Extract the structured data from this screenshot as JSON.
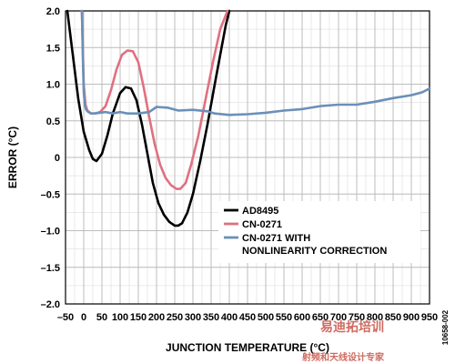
{
  "chart_data": {
    "type": "line",
    "xlabel": "JUNCTION TEMPERATURE (°C)",
    "ylabel": "ERROR (°C)",
    "xlim": [
      -50,
      950
    ],
    "ylim": [
      -2.0,
      2.0
    ],
    "x_ticks": [
      -50,
      0,
      50,
      100,
      150,
      200,
      250,
      300,
      350,
      400,
      450,
      500,
      550,
      600,
      650,
      700,
      750,
      800,
      850,
      900,
      950
    ],
    "x_tick_labels": [
      "–50",
      "0",
      "50",
      "100",
      "150",
      "200",
      "250",
      "300",
      "350",
      "400",
      "450",
      "500",
      "550",
      "600",
      "650",
      "700",
      "750",
      "800",
      "850",
      "900",
      "950"
    ],
    "y_ticks": [
      -2.0,
      -1.5,
      -1.0,
      -0.5,
      0,
      0.5,
      1.0,
      1.5,
      2.0
    ],
    "y_tick_labels": [
      "–2.0",
      "–1.5",
      "–1.0",
      "–0.5",
      "0",
      "0.5",
      "1.0",
      "1.5",
      "2.0"
    ],
    "x_minor_step": 25,
    "y_minor_step": 0.25,
    "grid": true,
    "legend_position": "lower-right",
    "series": [
      {
        "name": "AD8495",
        "color": "#000000",
        "x": [
          -45,
          -35,
          -25,
          -15,
          0,
          15,
          25,
          35,
          50,
          65,
          80,
          100,
          115,
          130,
          145,
          160,
          175,
          190,
          205,
          220,
          235,
          250,
          260,
          270,
          285,
          300,
          320,
          340,
          360,
          375,
          390,
          400
        ],
        "y": [
          2.0,
          1.6,
          1.2,
          0.8,
          0.35,
          0.1,
          -0.02,
          -0.05,
          0.05,
          0.3,
          0.6,
          0.88,
          0.96,
          0.94,
          0.78,
          0.45,
          0.05,
          -0.35,
          -0.62,
          -0.78,
          -0.88,
          -0.93,
          -0.93,
          -0.9,
          -0.75,
          -0.5,
          -0.05,
          0.45,
          1.0,
          1.4,
          1.8,
          2.0
        ]
      },
      {
        "name": "CN-0271",
        "color": "#e07080",
        "x": [
          -5,
          0,
          5,
          10,
          20,
          30,
          45,
          60,
          75,
          90,
          105,
          120,
          135,
          150,
          165,
          180,
          195,
          210,
          225,
          240,
          255,
          265,
          280,
          295,
          315,
          335,
          355,
          375,
          395
        ],
        "y": [
          2.0,
          1.0,
          0.72,
          0.64,
          0.6,
          0.6,
          0.62,
          0.7,
          0.92,
          1.2,
          1.4,
          1.46,
          1.45,
          1.3,
          0.95,
          0.55,
          0.18,
          -0.1,
          -0.28,
          -0.38,
          -0.43,
          -0.43,
          -0.35,
          -0.1,
          0.3,
          0.8,
          1.3,
          1.75,
          2.05
        ]
      },
      {
        "name": "CN-0271 WITH NONLINEARITY CORRECTION",
        "color": "#6a90b8",
        "x": [
          -5,
          -2,
          0,
          3,
          6,
          10,
          20,
          30,
          45,
          60,
          80,
          100,
          120,
          150,
          180,
          200,
          230,
          260,
          300,
          340,
          360,
          400,
          450,
          500,
          550,
          600,
          650,
          700,
          750,
          800,
          850,
          900,
          930,
          950
        ],
        "y": [
          2.0,
          1.3,
          0.9,
          0.72,
          0.66,
          0.63,
          0.6,
          0.6,
          0.61,
          0.62,
          0.6,
          0.62,
          0.6,
          0.6,
          0.62,
          0.69,
          0.68,
          0.64,
          0.65,
          0.63,
          0.6,
          0.58,
          0.59,
          0.61,
          0.64,
          0.66,
          0.7,
          0.72,
          0.72,
          0.76,
          0.81,
          0.85,
          0.89,
          0.94
        ]
      }
    ],
    "figure_id": "10658-002",
    "watermark": {
      "mark": "易迪拓培训",
      "text": "射频和天线设计专家"
    }
  }
}
